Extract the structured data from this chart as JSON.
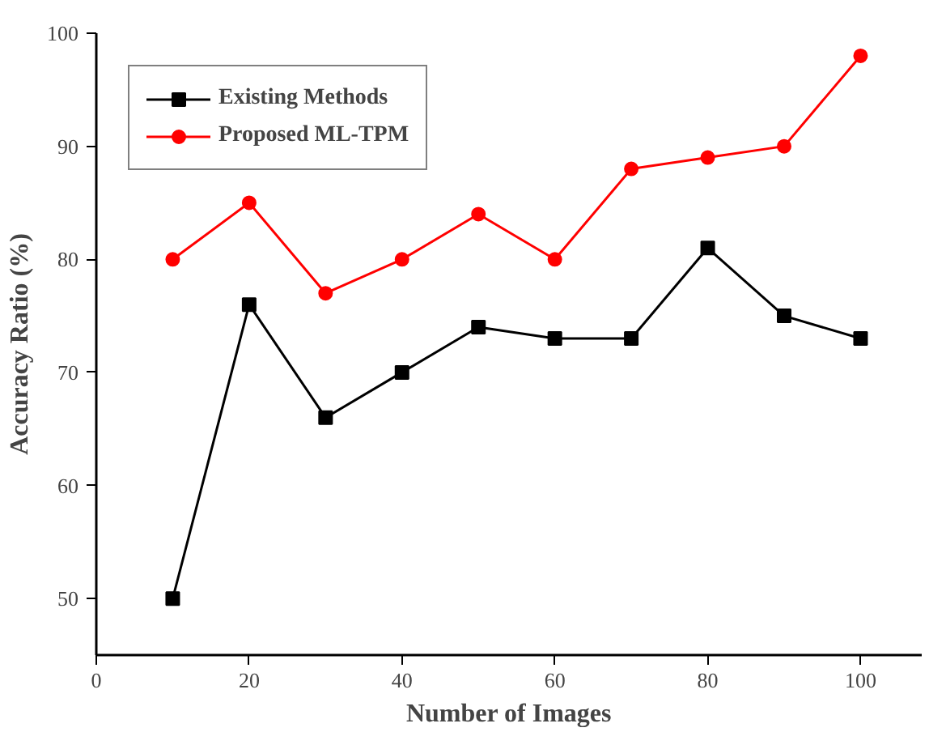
{
  "chart_data": {
    "type": "line",
    "xlabel": "Number of Images",
    "ylabel": "Accuracy Ratio (%)",
    "x": [
      10,
      20,
      30,
      40,
      50,
      60,
      70,
      80,
      90,
      100
    ],
    "series": [
      {
        "name": "Existing Methods",
        "color": "#000000",
        "marker": "square",
        "values": [
          50,
          76,
          66,
          70,
          74,
          73,
          73,
          81,
          75,
          73
        ]
      },
      {
        "name": "Proposed ML-TPM",
        "color": "#ff0000",
        "marker": "circle",
        "values": [
          80,
          85,
          77,
          80,
          84,
          80,
          88,
          89,
          90,
          98
        ]
      }
    ],
    "xlim": [
      0,
      108
    ],
    "ylim": [
      45,
      100
    ],
    "xticks": [
      0,
      20,
      40,
      60,
      80,
      100
    ],
    "yticks": [
      50,
      60,
      70,
      80,
      90,
      100
    ],
    "grid": false,
    "legend": "top left",
    "line_style": "solid"
  }
}
